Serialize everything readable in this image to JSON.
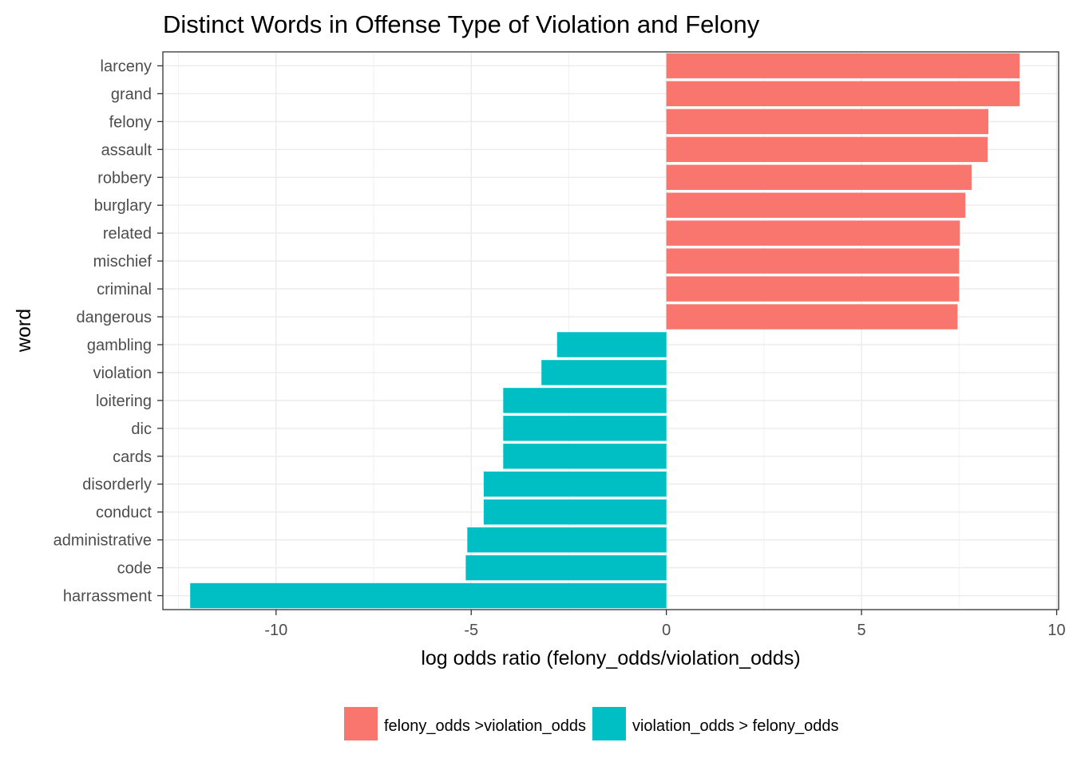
{
  "chart_data": {
    "type": "bar",
    "orientation": "horizontal",
    "title": "Distinct Words in Offense Type of Violation and Felony",
    "xlabel": "log odds ratio (felony_odds/violation_odds)",
    "ylabel": "word",
    "xlim": [
      -12.9,
      10.05
    ],
    "xticks": [
      -10,
      -5,
      0,
      5,
      10
    ],
    "grid": true,
    "legend_position": "bottom",
    "categories": [
      "larceny",
      "grand",
      "felony",
      "assault",
      "robbery",
      "burglary",
      "related",
      "mischief",
      "criminal",
      "dangerous",
      "gambling",
      "violation",
      "loitering",
      "dic",
      "cards",
      "disorderly",
      "conduct",
      "administrative",
      "code",
      "harrassment"
    ],
    "values": [
      9.05,
      9.05,
      8.25,
      8.23,
      7.82,
      7.66,
      7.52,
      7.5,
      7.5,
      7.46,
      -2.8,
      -3.2,
      -4.18,
      -4.18,
      -4.18,
      -4.68,
      -4.68,
      -5.1,
      -5.14,
      -12.2
    ],
    "groups": [
      "felony_odds >violation_odds",
      "felony_odds >violation_odds",
      "felony_odds >violation_odds",
      "felony_odds >violation_odds",
      "felony_odds >violation_odds",
      "felony_odds >violation_odds",
      "felony_odds >violation_odds",
      "felony_odds >violation_odds",
      "felony_odds >violation_odds",
      "felony_odds >violation_odds",
      "violation_odds > felony_odds",
      "violation_odds > felony_odds",
      "violation_odds > felony_odds",
      "violation_odds > felony_odds",
      "violation_odds > felony_odds",
      "violation_odds > felony_odds",
      "violation_odds > felony_odds",
      "violation_odds > felony_odds",
      "violation_odds > felony_odds",
      "violation_odds > felony_odds"
    ],
    "legend": [
      {
        "name": "felony_odds >violation_odds",
        "color": "#F8766D"
      },
      {
        "name": "violation_odds > felony_odds",
        "color": "#00BFC4"
      }
    ]
  }
}
